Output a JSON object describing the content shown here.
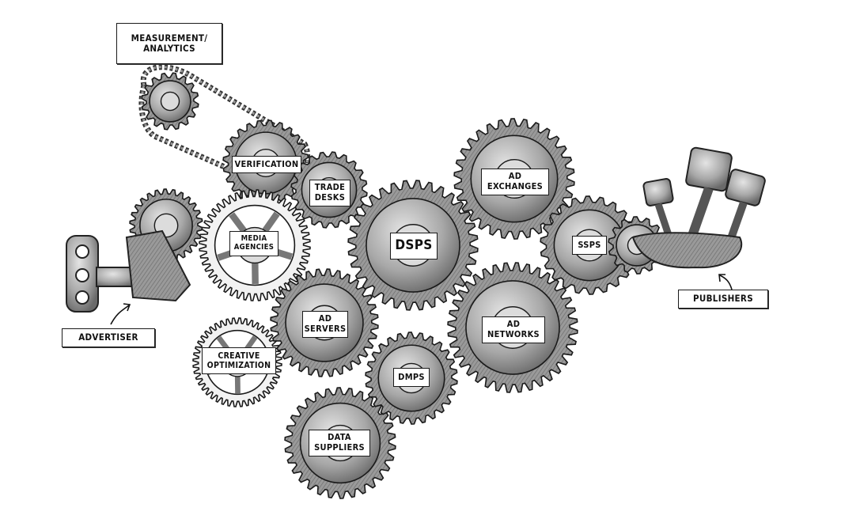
{
  "labels": {
    "measurement": "MEASUREMENT/\nANALYTICS",
    "advertiser": "ADVERTISER",
    "publishers": "PUBLISHERS",
    "verification": "VERIFICATION",
    "trade_desks": "TRADE\nDESKS",
    "media_agencies": "MEDIA\nAGENCIES",
    "ad_servers": "AD\nSERVERS",
    "creative_optimization": "CREATIVE\nOPTIMIZATION",
    "dsps": "DSPS",
    "dmps": "DMPS",
    "data_suppliers": "DATA\nSUPPLIERS",
    "ad_exchanges": "AD\nEXCHANGES",
    "ad_networks": "AD\nNETWORKS",
    "ssps": "SSPS"
  },
  "colors": {
    "ink": "#1a1a1a",
    "gear": "#8c8c8c",
    "gear_light": "#c9c9c9",
    "paper": "#ffffff"
  }
}
